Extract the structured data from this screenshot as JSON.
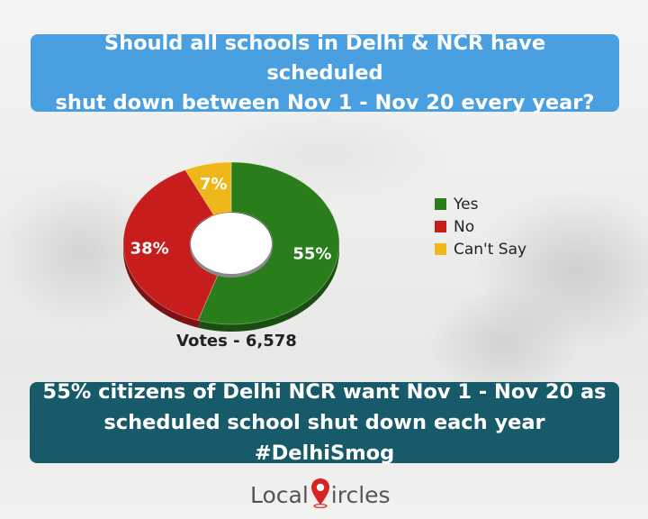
{
  "question": {
    "line1": "Should all schools in Delhi & NCR have scheduled",
    "line2": "shut down between Nov 1 - Nov 20 every year?"
  },
  "chart_data": {
    "type": "pie",
    "categories": [
      "Yes",
      "No",
      "Can't Say"
    ],
    "values": [
      55,
      38,
      7
    ],
    "data_labels": [
      "55%",
      "38%",
      "7%"
    ],
    "colors": [
      "#2a7d1b",
      "#c81d1d",
      "#f0b71a"
    ],
    "legend_position": "right",
    "donut": true
  },
  "votes_label": "Votes - 6,578",
  "answer": {
    "line1": "55% citizens of Delhi NCR want Nov 1 - Nov 20 as",
    "line2": "scheduled school shut down each year #DelhiSmog"
  },
  "logo": {
    "part1": "Local",
    "part2": "ircles",
    "pin_color": "#d92323"
  }
}
